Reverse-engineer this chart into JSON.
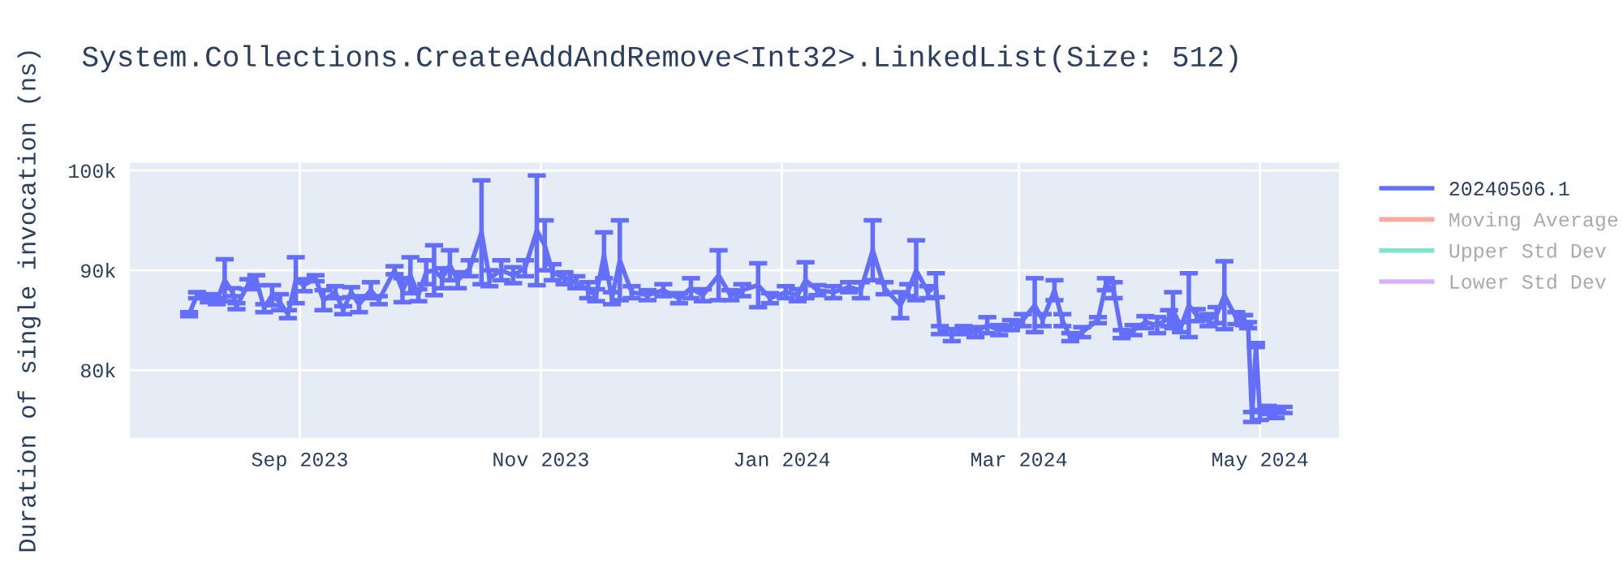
{
  "chart_data": {
    "type": "line",
    "title": "System.Collections.CreateAddAndRemove<Int32>.LinkedList(Size: 512)",
    "ylabel": "Duration of single invocation (ns)",
    "xlim": [
      "2023-07-20",
      "2024-05-21"
    ],
    "ylim": [
      73200,
      100800
    ],
    "xticks": [
      {
        "value": "2023-09-01",
        "label": "Sep 2023"
      },
      {
        "value": "2023-11-01",
        "label": "Nov 2023"
      },
      {
        "value": "2024-01-01",
        "label": "Jan 2024"
      },
      {
        "value": "2024-03-01",
        "label": "Mar 2024"
      },
      {
        "value": "2024-05-01",
        "label": "May 2024"
      }
    ],
    "yticks": [
      {
        "value": 80000,
        "label": "80k"
      },
      {
        "value": 90000,
        "label": "90k"
      },
      {
        "value": 100000,
        "label": "100k"
      }
    ],
    "grid": true,
    "legend": "top right",
    "marker": "none",
    "line_style": "solid",
    "series": [
      {
        "name": "20240506.1",
        "color": "#636efa",
        "x": [
          "2023-08-04",
          "2023-08-06",
          "2023-08-09",
          "2023-08-11",
          "2023-08-13",
          "2023-08-15",
          "2023-08-16",
          "2023-08-19",
          "2023-08-21",
          "2023-08-23",
          "2023-08-25",
          "2023-08-27",
          "2023-08-29",
          "2023-08-31",
          "2023-09-02",
          "2023-09-05",
          "2023-09-07",
          "2023-09-10",
          "2023-09-12",
          "2023-09-14",
          "2023-09-16",
          "2023-09-19",
          "2023-09-21",
          "2023-09-25",
          "2023-09-27",
          "2023-09-29",
          "2023-10-01",
          "2023-10-03",
          "2023-10-05",
          "2023-10-07",
          "2023-10-09",
          "2023-10-11",
          "2023-10-14",
          "2023-10-17",
          "2023-10-19",
          "2023-10-22",
          "2023-10-25",
          "2023-10-28",
          "2023-10-31",
          "2023-11-02",
          "2023-11-04",
          "2023-11-07",
          "2023-11-10",
          "2023-11-13",
          "2023-11-15",
          "2023-11-17",
          "2023-11-19",
          "2023-11-21",
          "2023-11-24",
          "2023-11-28",
          "2023-12-02",
          "2023-12-06",
          "2023-12-09",
          "2023-12-12",
          "2023-12-16",
          "2023-12-19",
          "2023-12-22",
          "2023-12-26",
          "2023-12-29",
          "2024-01-02",
          "2024-01-05",
          "2024-01-07",
          "2024-01-10",
          "2024-01-14",
          "2024-01-18",
          "2024-01-21",
          "2024-01-24",
          "2024-01-27",
          "2024-01-31",
          "2024-02-02",
          "2024-02-04",
          "2024-02-07",
          "2024-02-09",
          "2024-02-10",
          "2024-02-13",
          "2024-02-16",
          "2024-02-19",
          "2024-02-22",
          "2024-02-25",
          "2024-02-28",
          "2024-03-02",
          "2024-03-05",
          "2024-03-07",
          "2024-03-10",
          "2024-03-12",
          "2024-03-14",
          "2024-03-17",
          "2024-03-21",
          "2024-03-23",
          "2024-03-25",
          "2024-03-27",
          "2024-03-30",
          "2024-04-02",
          "2024-04-05",
          "2024-04-08",
          "2024-04-09",
          "2024-04-11",
          "2024-04-13",
          "2024-04-15",
          "2024-04-18",
          "2024-04-20",
          "2024-04-22",
          "2024-04-25",
          "2024-04-27",
          "2024-04-28",
          "2024-04-29",
          "2024-04-30",
          "2024-05-01",
          "2024-05-03",
          "2024-05-05",
          "2024-05-07"
        ],
        "values": [
          85600,
          87500,
          87200,
          86900,
          89000,
          87800,
          86400,
          88600,
          89000,
          86200,
          87500,
          86800,
          85600,
          89000,
          88500,
          89200,
          87000,
          87800,
          86000,
          87800,
          86600,
          88000,
          87000,
          90000,
          88000,
          89500,
          87500,
          89800,
          90000,
          89200,
          90500,
          89000,
          90200,
          93800,
          89200,
          90000,
          89500,
          90200,
          94000,
          92500,
          89800,
          89200,
          88800,
          88000,
          87500,
          91500,
          87200,
          91000,
          87800,
          87500,
          88000,
          87200,
          88200,
          87500,
          89500,
          87500,
          88000,
          88500,
          87200,
          87800,
          87500,
          89000,
          88000,
          87800,
          88300,
          88000,
          92000,
          88200,
          86500,
          88000,
          90000,
          87800,
          88500,
          84000,
          83500,
          84000,
          83800,
          84500,
          84000,
          84500,
          85000,
          86500,
          85000,
          88000,
          85000,
          83300,
          83800,
          85000,
          88600,
          88000,
          83600,
          84000,
          84800,
          84500,
          85200,
          86000,
          84300,
          86500,
          85500,
          85000,
          85500,
          87500,
          85200,
          85000,
          84500,
          75300,
          82500,
          75500,
          76000,
          75600,
          76000
        ],
        "errors": [
          200,
          300,
          400,
          300,
          2100,
          400,
          300,
          500,
          500,
          400,
          1000,
          800,
          400,
          2300,
          600,
          300,
          1000,
          600,
          400,
          500,
          800,
          800,
          400,
          400,
          1200,
          1800,
          600,
          1200,
          2500,
          1000,
          1500,
          800,
          800,
          5200,
          800,
          1000,
          800,
          800,
          5500,
          2500,
          800,
          600,
          600,
          800,
          600,
          2300,
          600,
          4000,
          600,
          500,
          600,
          500,
          1000,
          600,
          2500,
          500,
          600,
          2200,
          500,
          600,
          600,
          1800,
          500,
          600,
          500,
          800,
          3000,
          600,
          1300,
          600,
          3000,
          600,
          1200,
          400,
          600,
          400,
          500,
          800,
          500,
          500,
          600,
          2700,
          600,
          1000,
          600,
          400,
          500,
          300,
          600,
          800,
          400,
          500,
          600,
          800,
          800,
          1800,
          500,
          3200,
          600,
          600,
          800,
          3400,
          600,
          500,
          300,
          500,
          200,
          500,
          400,
          400,
          300
        ]
      },
      {
        "name": "Moving Average",
        "color": "#f7aa9d"
      },
      {
        "name": "Upper Std Dev",
        "color": "#80e6cb"
      },
      {
        "name": "Lower Std Dev",
        "color": "#d5b1fd"
      }
    ]
  }
}
